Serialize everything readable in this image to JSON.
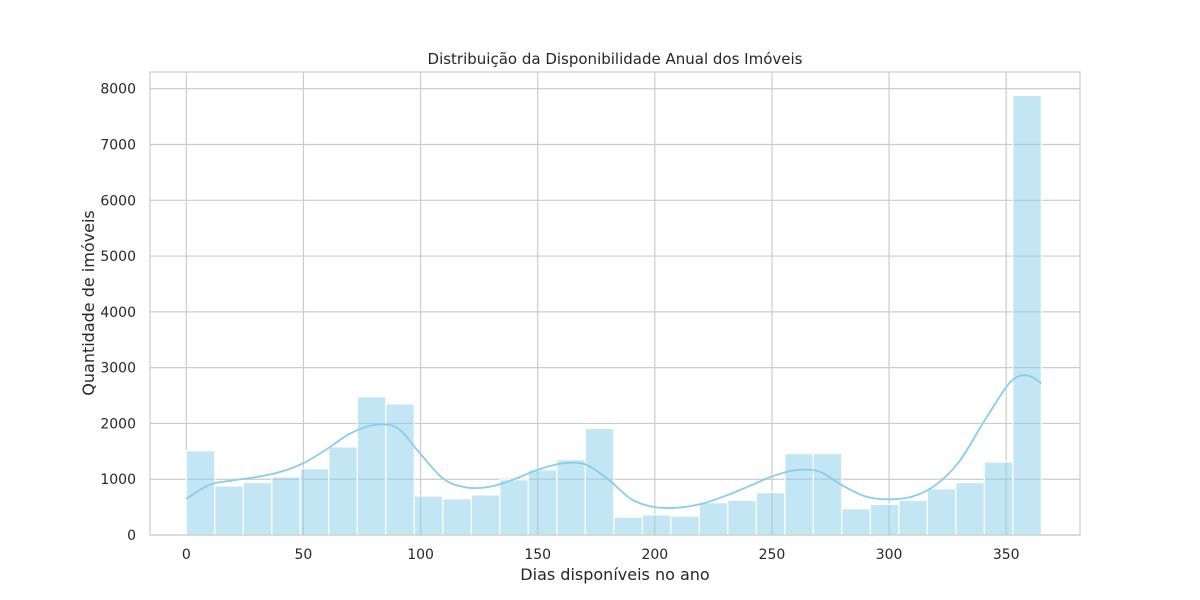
{
  "chart_data": {
    "type": "bar",
    "title": "Distribuição da Disponibilidade Anual dos Imóveis",
    "xlabel": "Dias disponíveis no ano",
    "ylabel": "Quantidade de imóveis",
    "xlim": [
      -15.5,
      381.5
    ],
    "ylim": [
      0,
      8300
    ],
    "grid": true,
    "x_ticks": [
      0,
      50,
      100,
      150,
      200,
      250,
      300,
      350
    ],
    "y_ticks": [
      0,
      1000,
      2000,
      3000,
      4000,
      5000,
      6000,
      7000,
      8000
    ],
    "bin_width": 12.1667,
    "bin_edges": [
      0,
      12.17,
      24.33,
      36.5,
      48.67,
      60.83,
      73,
      85.17,
      97.33,
      109.5,
      121.67,
      133.83,
      146,
      158.17,
      170.33,
      182.5,
      194.67,
      206.83,
      219,
      231.17,
      243.33,
      255.5,
      267.67,
      279.83,
      292,
      304.17,
      316.33,
      328.5,
      340.67,
      352.83,
      365
    ],
    "values": [
      1510,
      880,
      940,
      1040,
      1190,
      1580,
      2480,
      2350,
      700,
      650,
      720,
      990,
      1170,
      1350,
      1910,
      320,
      360,
      340,
      580,
      620,
      760,
      1460,
      1460,
      470,
      550,
      620,
      830,
      940,
      1310,
      7880
    ],
    "bar_color": "#87CEEB",
    "kde_color": "#87CEEB",
    "kde": {
      "x": [
        0,
        10,
        20,
        30,
        40,
        50,
        60,
        70,
        80,
        90,
        100,
        110,
        120,
        130,
        140,
        150,
        160,
        170,
        180,
        190,
        200,
        210,
        220,
        230,
        240,
        250,
        260,
        270,
        280,
        290,
        300,
        310,
        320,
        330,
        340,
        350,
        355,
        360,
        365
      ],
      "y": [
        650,
        900,
        980,
        1040,
        1130,
        1290,
        1540,
        1820,
        1970,
        1920,
        1450,
        1000,
        850,
        870,
        1000,
        1170,
        1280,
        1270,
        1000,
        640,
        500,
        490,
        560,
        700,
        870,
        1050,
        1160,
        1140,
        890,
        690,
        640,
        690,
        900,
        1320,
        2000,
        2650,
        2840,
        2850,
        2720
      ]
    }
  }
}
